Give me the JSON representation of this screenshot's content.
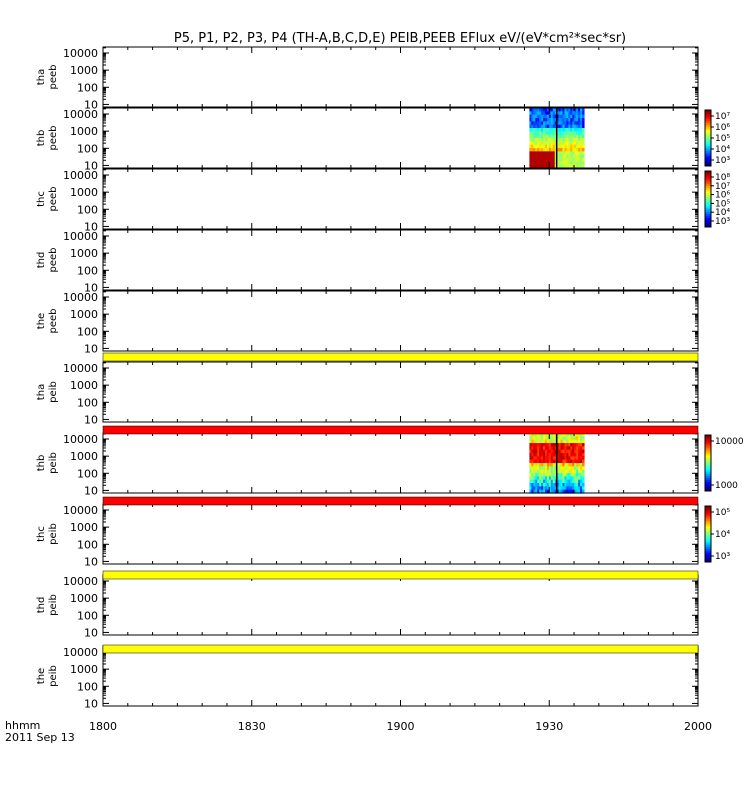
{
  "title": "P5, P1, P2, P3, P4 (TH-A,B,C,D,E) PEIB,PEEB EFlux eV/(eV*cm²*sec*sr)",
  "chart_data": {
    "type": "heatmap",
    "x_ticks": [
      "1800",
      "1830",
      "1900",
      "1930",
      "2000"
    ],
    "x_range": [
      "18:00",
      "20:00"
    ],
    "x_label_time": "hhmm",
    "x_label_date": "2011 Sep 13",
    "y_ticks": [
      "10",
      "100",
      "1000",
      "10000"
    ],
    "y_scale": "log",
    "panels": [
      {
        "probe": "tha",
        "product": "peeb",
        "has_data": false,
        "colorbar": null
      },
      {
        "probe": "thb",
        "product": "peeb",
        "has_data": true,
        "colorbar": {
          "ticks": [
            "10³",
            "10⁴",
            "10⁵",
            "10⁶",
            "10⁷"
          ]
        },
        "data_span": [
          "19:26",
          "19:37"
        ]
      },
      {
        "probe": "thc",
        "product": "peeb",
        "has_data": false,
        "colorbar": {
          "ticks": [
            "10³",
            "10⁴",
            "10⁵",
            "10⁶",
            "10⁷",
            "10⁸"
          ]
        }
      },
      {
        "probe": "thd",
        "product": "peeb",
        "has_data": false,
        "colorbar": null
      },
      {
        "probe": "the",
        "product": "peeb",
        "has_data": false,
        "colorbar": null
      },
      {
        "probe": "tha",
        "product": "peib",
        "has_data": false,
        "colorbar": null
      },
      {
        "probe": "thb",
        "product": "peib",
        "has_data": true,
        "colorbar": {
          "ticks": [
            "1000",
            "10000"
          ]
        },
        "data_span": [
          "19:26",
          "19:37"
        ]
      },
      {
        "probe": "thc",
        "product": "peib",
        "has_data": false,
        "colorbar": {
          "ticks": [
            "10³",
            "10⁴",
            "10⁵"
          ]
        }
      },
      {
        "probe": "thd",
        "product": "peib",
        "has_data": false,
        "colorbar": null
      },
      {
        "probe": "the",
        "product": "peib",
        "has_data": false,
        "colorbar": null
      }
    ],
    "status_bars": [
      {
        "color": "#ffff00",
        "after_panel": 5
      },
      {
        "color": "#ff0000",
        "after_panel": 6
      },
      {
        "color": "#ff0000",
        "after_panel": 7
      },
      {
        "color": "#ffff00",
        "after_panel": 8
      },
      {
        "color": "#ffff00",
        "after_panel": 9
      }
    ]
  }
}
